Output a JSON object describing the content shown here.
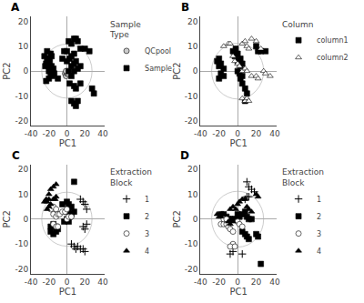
{
  "chart_data": [
    {
      "type": "scatter",
      "title": "A",
      "xlabel": "PC1",
      "ylabel": "PC2",
      "xlim": [
        -40,
        42
      ],
      "ylim": [
        -22,
        22
      ],
      "xticks": [
        -40,
        -20,
        0,
        20,
        40
      ],
      "yticks": [
        -20,
        -10,
        0,
        10,
        20
      ],
      "grid": false,
      "legend": "right",
      "legend_title": "Sample\nType",
      "circle": {
        "center": [
          0,
          0
        ],
        "radius": 28,
        "color": "#cccccc"
      },
      "series": [
        {
          "name": "QCpool",
          "color": "#cccccc",
          "marker": "circle",
          "values": [
            [
              -2,
              -1
            ],
            [
              -1,
              -2
            ],
            [
              0,
              -1
            ],
            [
              1,
              -1
            ],
            [
              -1,
              0
            ]
          ]
        },
        {
          "name": "Sample",
          "color": "black",
          "marker": "square",
          "values": [
            [
              -25,
              6
            ],
            [
              -22,
              8
            ],
            [
              -20,
              5
            ],
            [
              -23,
              3
            ],
            [
              -18,
              7
            ],
            [
              -22,
              5
            ],
            [
              -19,
              4
            ],
            [
              -17,
              6
            ],
            [
              -24,
              2
            ],
            [
              -20,
              2
            ],
            [
              -17,
              2
            ],
            [
              -20,
              0
            ],
            [
              -15,
              1
            ],
            [
              -18,
              -1
            ],
            [
              -16,
              -2
            ],
            [
              -20,
              -3
            ],
            [
              -23,
              -4
            ],
            [
              -14,
              -1
            ],
            [
              -10,
              -3
            ],
            [
              -5,
              5
            ],
            [
              -3,
              8
            ],
            [
              0,
              8
            ],
            [
              2,
              12
            ],
            [
              5,
              11
            ],
            [
              8,
              13
            ],
            [
              10,
              13
            ],
            [
              12,
              12
            ],
            [
              15,
              9
            ],
            [
              0,
              4
            ],
            [
              3,
              5
            ],
            [
              5,
              6
            ],
            [
              8,
              7
            ],
            [
              2,
              0
            ],
            [
              5,
              2
            ],
            [
              8,
              3
            ],
            [
              10,
              4
            ],
            [
              5,
              -2
            ],
            [
              8,
              0
            ],
            [
              12,
              1
            ],
            [
              15,
              2
            ],
            [
              3,
              -5
            ],
            [
              8,
              -6
            ],
            [
              10,
              -7
            ],
            [
              15,
              -5
            ],
            [
              5,
              -12
            ],
            [
              8,
              -13
            ],
            [
              10,
              -14
            ],
            [
              12,
              -12
            ],
            [
              20,
              9
            ],
            [
              25,
              8
            ],
            [
              28,
              -7
            ],
            [
              30,
              -9
            ]
          ]
        }
      ]
    },
    {
      "type": "scatter",
      "title": "B",
      "xlabel": "PC1",
      "ylabel": "PC2",
      "xlim": [
        -40,
        42
      ],
      "ylim": [
        -22,
        22
      ],
      "xticks": [
        -40,
        -20,
        0,
        20,
        40
      ],
      "yticks": [
        -20,
        -10,
        0,
        10,
        20
      ],
      "grid": false,
      "legend": "right",
      "legend_title": "Column",
      "circle": {
        "center": [
          0,
          0
        ],
        "radius": 28,
        "color": "#cccccc"
      },
      "series": [
        {
          "name": "column1",
          "color": "black",
          "marker": "square",
          "values": [
            [
              -20,
              5
            ],
            [
              -22,
              4
            ],
            [
              -18,
              3
            ],
            [
              -20,
              2
            ],
            [
              -15,
              1
            ],
            [
              -18,
              -1
            ],
            [
              -15,
              -2
            ],
            [
              -20,
              -3
            ],
            [
              -5,
              8
            ],
            [
              -2,
              9
            ],
            [
              0,
              7
            ],
            [
              -3,
              6
            ],
            [
              0,
              4
            ],
            [
              3,
              5
            ],
            [
              5,
              3
            ],
            [
              3,
              2
            ],
            [
              0,
              0
            ],
            [
              2,
              -1
            ],
            [
              5,
              -2
            ],
            [
              3,
              -3
            ],
            [
              5,
              -5
            ],
            [
              8,
              -7
            ],
            [
              10,
              -9
            ],
            [
              8,
              -12
            ],
            [
              20,
              10
            ],
            [
              22,
              8
            ],
            [
              25,
              8
            ],
            [
              30,
              8
            ]
          ]
        },
        {
          "name": "column2",
          "color": "white",
          "marker": "triangle",
          "values": [
            [
              -15,
              10
            ],
            [
              -10,
              11
            ],
            [
              -8,
              11
            ],
            [
              -5,
              6
            ],
            [
              -3,
              4
            ],
            [
              0,
              3
            ],
            [
              2,
              2
            ],
            [
              5,
              11
            ],
            [
              8,
              12
            ],
            [
              10,
              10
            ],
            [
              12,
              9
            ],
            [
              15,
              13
            ],
            [
              20,
              12
            ],
            [
              25,
              9
            ],
            [
              5,
              0
            ],
            [
              8,
              1
            ],
            [
              10,
              0
            ],
            [
              5,
              -11
            ],
            [
              8,
              -12
            ],
            [
              10,
              -11
            ],
            [
              12,
              -12
            ],
            [
              15,
              -2
            ],
            [
              20,
              -2
            ],
            [
              22,
              -3
            ],
            [
              28,
              0
            ],
            [
              30,
              -1
            ],
            [
              35,
              -2
            ]
          ]
        }
      ]
    },
    {
      "type": "scatter",
      "title": "C",
      "xlabel": "PC1",
      "ylabel": "PC2",
      "xlim": [
        -40,
        42
      ],
      "ylim": [
        -22,
        22
      ],
      "xticks": [
        -40,
        -20,
        0,
        20,
        40
      ],
      "yticks": [
        -20,
        -10,
        0,
        10,
        20
      ],
      "grid": false,
      "legend": "right",
      "legend_title": "Extraction\nBlock",
      "circle": {
        "center": [
          0,
          0
        ],
        "radius": 28,
        "color": "#cccccc"
      },
      "series": [
        {
          "name": "1",
          "color": "black",
          "marker": "plus",
          "values": [
            [
              15,
              8
            ],
            [
              18,
              7
            ],
            [
              20,
              6
            ],
            [
              22,
              4
            ],
            [
              18,
              -3
            ],
            [
              20,
              -4
            ],
            [
              22,
              -2
            ],
            [
              5,
              -10
            ],
            [
              8,
              -11
            ],
            [
              10,
              -12
            ],
            [
              12,
              -11
            ],
            [
              15,
              -12
            ],
            [
              18,
              -12
            ],
            [
              20,
              -13
            ]
          ]
        },
        {
          "name": "2",
          "color": "black",
          "marker": "square",
          "values": [
            [
              -18,
              -3
            ],
            [
              -15,
              -2
            ],
            [
              -12,
              -3
            ],
            [
              -18,
              -5
            ],
            [
              -15,
              -6
            ],
            [
              -12,
              -5
            ],
            [
              -10,
              -4
            ],
            [
              -5,
              6
            ],
            [
              0,
              7
            ],
            [
              2,
              6
            ],
            [
              0,
              3
            ],
            [
              2,
              4
            ],
            [
              5,
              5
            ],
            [
              8,
              15
            ],
            [
              3,
              1
            ],
            [
              5,
              2
            ],
            [
              8,
              3
            ],
            [
              -3,
              -1
            ],
            [
              0,
              0
            ],
            [
              2,
              -1
            ]
          ]
        },
        {
          "name": "3",
          "color": "white",
          "marker": "circle",
          "values": [
            [
              -18,
              4
            ],
            [
              -15,
              5
            ],
            [
              -12,
              4
            ],
            [
              -15,
              2
            ],
            [
              -12,
              1
            ],
            [
              -10,
              2
            ],
            [
              -8,
              2
            ],
            [
              -5,
              3
            ],
            [
              -2,
              3
            ],
            [
              0,
              4
            ],
            [
              0,
              0
            ],
            [
              2,
              1
            ],
            [
              5,
              1
            ],
            [
              -15,
              -2
            ],
            [
              -12,
              -3
            ],
            [
              -10,
              -3
            ]
          ]
        },
        {
          "name": "4",
          "color": "black",
          "marker": "triangle",
          "values": [
            [
              -25,
              7
            ],
            [
              -23,
              8
            ],
            [
              -22,
              7
            ],
            [
              -20,
              8
            ],
            [
              -22,
              4
            ],
            [
              -20,
              5
            ],
            [
              -18,
              6
            ],
            [
              -20,
              10
            ],
            [
              -18,
              12
            ],
            [
              -15,
              13
            ],
            [
              -12,
              14
            ],
            [
              -15,
              8
            ],
            [
              -13,
              8
            ],
            [
              -12,
              9
            ]
          ]
        }
      ]
    },
    {
      "type": "scatter",
      "title": "D",
      "xlabel": "PC1",
      "ylabel": "PC2",
      "xlim": [
        -40,
        42
      ],
      "ylim": [
        -22,
        22
      ],
      "xticks": [
        -40,
        -20,
        0,
        20,
        40
      ],
      "yticks": [
        -20,
        -10,
        0,
        10,
        20
      ],
      "grid": false,
      "legend": "right",
      "legend_title": "Extraction\nBlock",
      "circle": {
        "center": [
          0,
          0
        ],
        "radius": 28,
        "color": "#cccccc"
      },
      "series": [
        {
          "name": "1",
          "color": "black",
          "marker": "plus",
          "values": [
            [
              10,
              15
            ],
            [
              12,
              13
            ],
            [
              15,
              12
            ],
            [
              18,
              11
            ],
            [
              8,
              8
            ],
            [
              10,
              9
            ],
            [
              12,
              9
            ],
            [
              -5,
              -13
            ],
            [
              -8,
              -14
            ],
            [
              5,
              -14
            ]
          ]
        },
        {
          "name": "2",
          "color": "black",
          "marker": "square",
          "values": [
            [
              -18,
              2
            ],
            [
              -15,
              2
            ],
            [
              -12,
              1
            ],
            [
              -10,
              0
            ],
            [
              -8,
              0
            ],
            [
              -5,
              0
            ],
            [
              -3,
              0
            ],
            [
              0,
              2
            ],
            [
              2,
              1
            ],
            [
              5,
              2
            ],
            [
              8,
              3
            ],
            [
              10,
              1
            ],
            [
              12,
              0
            ],
            [
              15,
              0
            ],
            [
              5,
              -5
            ],
            [
              8,
              -6
            ],
            [
              10,
              -7
            ],
            [
              12,
              -8
            ],
            [
              20,
              -6
            ],
            [
              22,
              -7
            ],
            [
              25,
              -18
            ]
          ]
        },
        {
          "name": "3",
          "color": "white",
          "marker": "circle",
          "values": [
            [
              -18,
              -2
            ],
            [
              -15,
              -2
            ],
            [
              -12,
              -2
            ],
            [
              -10,
              -3
            ],
            [
              -8,
              -4
            ],
            [
              -5,
              -5
            ],
            [
              0,
              -1
            ],
            [
              2,
              -2
            ],
            [
              5,
              -3
            ],
            [
              -5,
              -10
            ],
            [
              -8,
              -11
            ],
            [
              -3,
              -11
            ],
            [
              -15,
              0
            ],
            [
              -12,
              0
            ]
          ]
        },
        {
          "name": "4",
          "color": "black",
          "marker": "triangle",
          "values": [
            [
              -22,
              2
            ],
            [
              -20,
              1
            ],
            [
              -18,
              1
            ],
            [
              -8,
              4
            ],
            [
              -5,
              5
            ],
            [
              -2,
              4
            ],
            [
              0,
              6
            ],
            [
              2,
              7
            ],
            [
              5,
              8
            ],
            [
              8,
              8
            ],
            [
              10,
              5
            ],
            [
              12,
              4
            ],
            [
              15,
              3
            ],
            [
              -10,
              -1
            ],
            [
              -8,
              -2
            ],
            [
              -5,
              -1
            ],
            [
              20,
              10
            ],
            [
              22,
              9
            ]
          ]
        }
      ]
    }
  ]
}
